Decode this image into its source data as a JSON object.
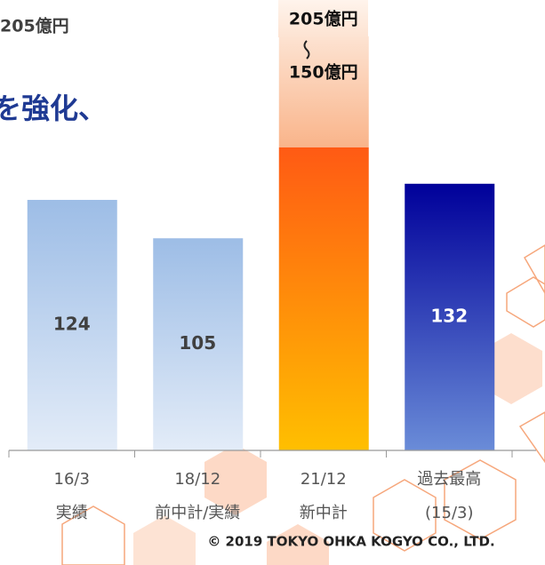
{
  "header": {
    "note": "205億円",
    "title": "を強化、"
  },
  "chart_data": {
    "type": "bar",
    "categories": [
      [
        "16/3",
        "実績"
      ],
      [
        "18/12",
        "前中計/実績"
      ],
      [
        "21/12",
        "新中計"
      ],
      [
        "過去最高",
        "(15/3)"
      ]
    ],
    "values": [
      124,
      105,
      150,
      132
    ],
    "value_labels": [
      "124",
      "105",
      "150億円",
      "132"
    ],
    "upper_values": [
      null,
      null,
      205,
      null
    ],
    "upper_value_labels": [
      null,
      null,
      "205億円",
      null
    ],
    "colors": [
      "#9dbde6",
      "#9dbde6",
      "#ff5a14",
      "#00009a"
    ]
  },
  "footer": {
    "copyright": "© 2019 TOKYO OHKA KOGYO CO., LTD."
  }
}
